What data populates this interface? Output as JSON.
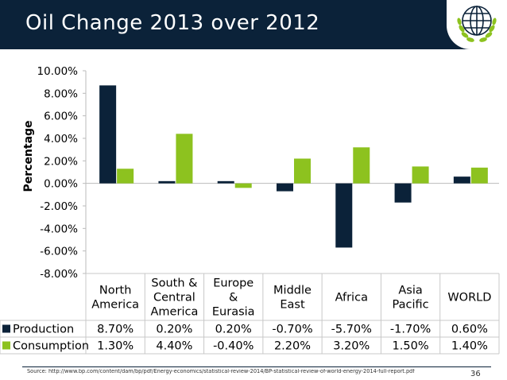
{
  "slide": {
    "title": "Oil Change 2013 over 2012",
    "source": "Source: http://www.bp.com/content/dam/bp/pdf/Energy-economics/statistical-review-2014/BP-statistical-review-of-world-energy-2014-full-report.pdf",
    "page_number": "36"
  },
  "colors": {
    "header": "#0b2239",
    "production": "#0b2239",
    "consumption": "#8dc21f",
    "logo_globe": "#0b2239",
    "logo_laurel": "#8dc21f"
  },
  "logo_icon": "globe-laurel-icon",
  "chart_data": {
    "type": "bar",
    "ylabel": "Percentage",
    "ylim": [
      -8,
      10
    ],
    "yticks": [
      10,
      8,
      6,
      4,
      2,
      0,
      -2,
      -4,
      -6,
      -8
    ],
    "ytick_labels": [
      "10.00%",
      "8.00%",
      "6.00%",
      "4.00%",
      "2.00%",
      "0.00%",
      "-2.00%",
      "-4.00%",
      "-6.00%",
      "-8.00%"
    ],
    "categories": [
      [
        "North",
        "America"
      ],
      [
        "South &",
        "Central",
        "America"
      ],
      [
        "Europe",
        "&",
        "Eurasia"
      ],
      [
        "Middle",
        "East"
      ],
      [
        "Africa"
      ],
      [
        "Asia",
        "Pacific"
      ],
      [
        "WORLD"
      ]
    ],
    "series": [
      {
        "name": "Production",
        "values": [
          8.7,
          0.2,
          0.2,
          -0.7,
          -5.7,
          -1.7,
          0.6
        ],
        "labels": [
          "8.70%",
          "0.20%",
          "0.20%",
          "-0.70%",
          "-5.70%",
          "-1.70%",
          "0.60%"
        ]
      },
      {
        "name": "Consumption",
        "values": [
          1.3,
          4.4,
          -0.4,
          2.2,
          3.2,
          1.5,
          1.4
        ],
        "labels": [
          "1.30%",
          "4.40%",
          "-0.40%",
          "2.20%",
          "3.20%",
          "1.50%",
          "1.40%"
        ]
      }
    ],
    "grid": false,
    "legend": "data-table"
  }
}
